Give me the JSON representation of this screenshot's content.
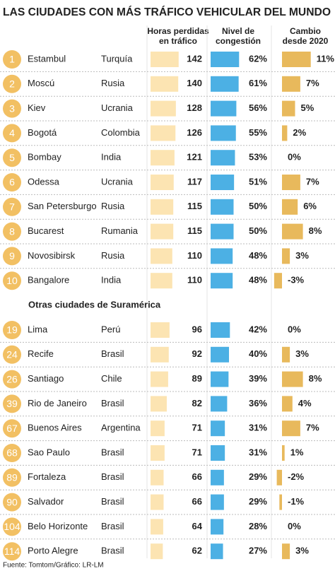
{
  "chart_data": {
    "type": "bar-table",
    "title": "LAS CIUDADES CON MÁS TRÁFICO VEHICULAR DEL MUNDO",
    "column_headers": [
      [
        "Horas perdidas",
        "en tráfico"
      ],
      [
        "Nivel de",
        "congestión"
      ],
      [
        "Cambio",
        "desde 2020"
      ]
    ],
    "colors": {
      "rank": "#f2c063",
      "hours": "#fce4b2",
      "congestion": "#4cb0e4",
      "change": "#e8b95c"
    },
    "groups": [
      {
        "ranks": [
          1,
          2,
          3,
          4,
          5,
          6,
          7,
          8,
          9,
          10
        ],
        "cities": [
          "Estambul",
          "Moscú",
          "Kiev",
          "Bogotá",
          "Bombay",
          "Odessa",
          "San Petersburgo",
          "Bucarest",
          "Novosibirsk",
          "Bangalore"
        ],
        "countries": [
          "Turquía",
          "Rusia",
          "Ucrania",
          "Colombia",
          "India",
          "Ucrania",
          "Rusia",
          "Rumania",
          "Rusia",
          "India"
        ],
        "hours": [
          142,
          140,
          128,
          126,
          121,
          117,
          115,
          115,
          110,
          110
        ],
        "congestion": [
          62,
          61,
          56,
          55,
          53,
          51,
          50,
          50,
          48,
          48
        ],
        "congestion_labels": [
          "62%",
          "61%",
          "56%",
          "55%",
          "53%",
          "51%",
          "50%",
          "50%",
          "48%",
          "48%"
        ],
        "change": [
          11,
          7,
          5,
          2,
          0,
          7,
          6,
          8,
          3,
          -3
        ],
        "change_labels": [
          "11%",
          "7%",
          "5%",
          "2%",
          "0%",
          "7%",
          "6%",
          "8%",
          "3%",
          "-3%"
        ]
      },
      {
        "title": "Otras ciudades de Suramérica",
        "ranks": [
          19,
          24,
          26,
          39,
          67,
          68,
          89,
          90,
          104,
          114
        ],
        "cities": [
          "Lima",
          "Recife",
          "Santiago",
          "Rio de Janeiro",
          "Buenos Aires",
          "Sao Paulo",
          "Fortaleza",
          "Salvador",
          "Belo Horizonte",
          "Porto Alegre"
        ],
        "countries": [
          "Perú",
          "Brasil",
          "Chile",
          "Brasil",
          "Argentina",
          "Brasil",
          "Brasil",
          "Brasil",
          "Brasil",
          "Brasil"
        ],
        "hours": [
          96,
          92,
          89,
          82,
          71,
          71,
          66,
          66,
          64,
          62
        ],
        "congestion": [
          42,
          40,
          39,
          36,
          31,
          31,
          29,
          29,
          28,
          27
        ],
        "congestion_labels": [
          "42%",
          "40%",
          "39%",
          "36%",
          "31%",
          "31%",
          "29%",
          "29%",
          "28%",
          "27%"
        ],
        "change": [
          0,
          3,
          8,
          4,
          7,
          1,
          -2,
          -1,
          0,
          3
        ],
        "change_labels": [
          "0%",
          "3%",
          "8%",
          "4%",
          "7%",
          "1%",
          "-2%",
          "-1%",
          "0%",
          "3%"
        ]
      }
    ],
    "source": "Fuente: Tomtom/Gráfico: LR-LM"
  }
}
